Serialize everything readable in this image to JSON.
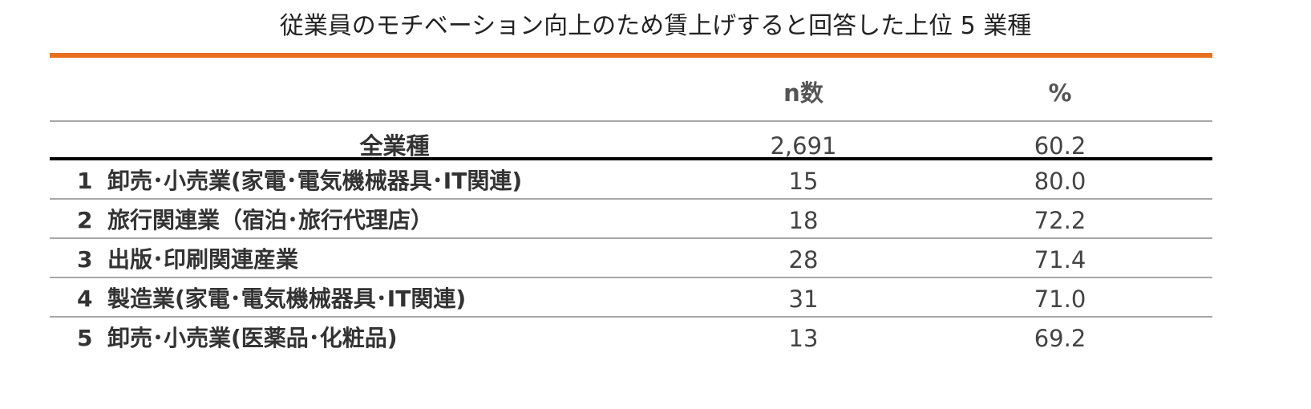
{
  "chart_data": {
    "type": "table",
    "title": "従業員のモチベーション向上のため賃上げすると回答した上位 5 業種",
    "columns": [
      "n数",
      "%"
    ],
    "total": {
      "label": "全業種",
      "n": "2,691",
      "pct": "60.2"
    },
    "rows": [
      {
        "rank": "1",
        "industry": "卸売･小売業(家電･電気機械器具･IT関連)",
        "n": "15",
        "pct": "80.0"
      },
      {
        "rank": "2",
        "industry": "旅行関連業（宿泊･旅行代理店）",
        "n": "18",
        "pct": "72.2"
      },
      {
        "rank": "3",
        "industry": "出版･印刷関連産業",
        "n": "28",
        "pct": "71.4"
      },
      {
        "rank": "4",
        "industry": "製造業(家電･電気機械器具･IT関連)",
        "n": "31",
        "pct": "71.0"
      },
      {
        "rank": "5",
        "industry": "卸売･小売業(医薬品･化粧品)",
        "n": "13",
        "pct": "69.2"
      }
    ],
    "colors": {
      "accent": "#e8701f",
      "rule": "#a8a8a8",
      "strong_rule": "#000000"
    }
  }
}
